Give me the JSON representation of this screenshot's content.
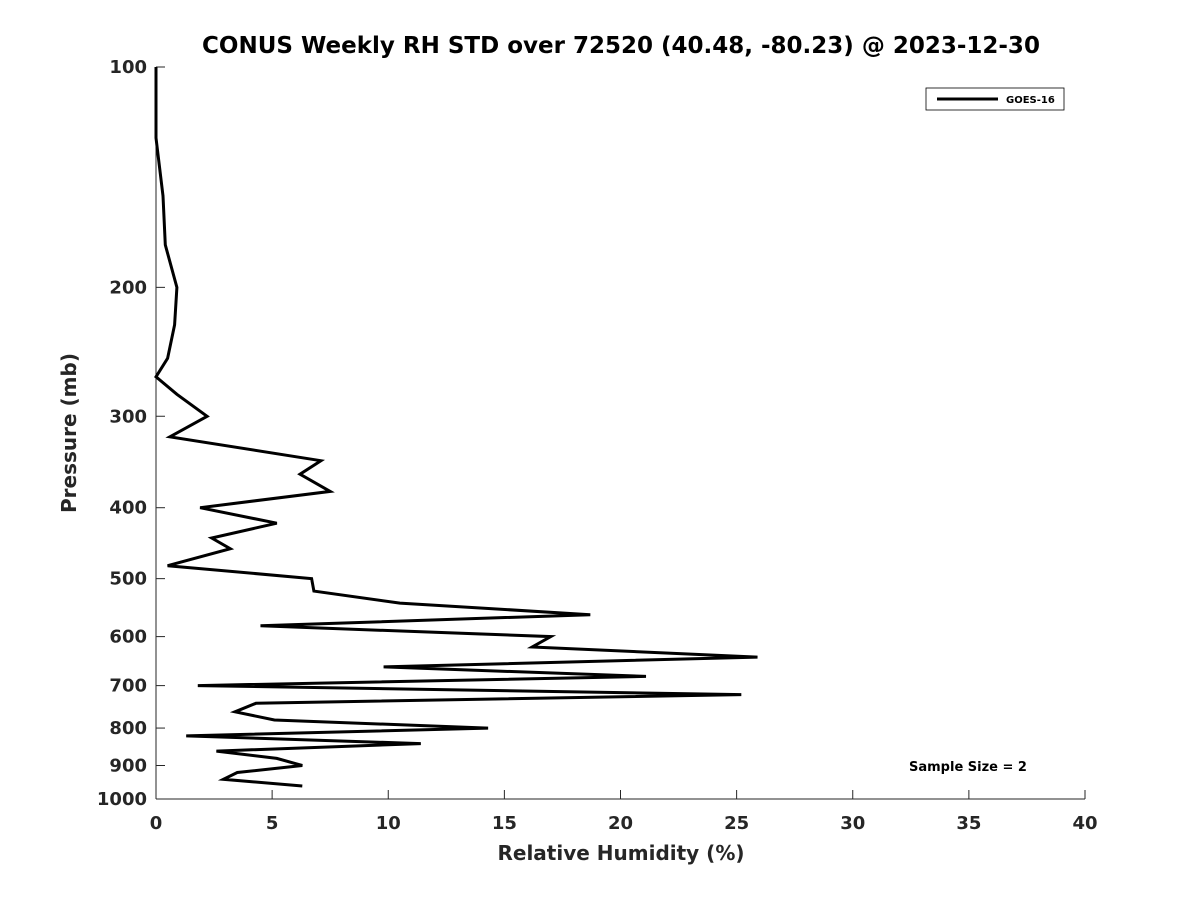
{
  "chart_data": {
    "type": "line",
    "title": "CONUS Weekly RH STD over 72520 (40.48, -80.23) @ 2023-12-30",
    "xlabel": "Relative Humidity (%)",
    "ylabel": "Pressure (mb)",
    "xlim": [
      0,
      40
    ],
    "ylim": [
      100,
      1000
    ],
    "y_scale": "log",
    "y_reversed": true,
    "x_ticks": [
      0,
      5,
      10,
      15,
      20,
      25,
      30,
      35,
      40
    ],
    "x_tick_labels": [
      "0",
      "5",
      "10",
      "15",
      "20",
      "25",
      "30",
      "35",
      "40"
    ],
    "y_ticks": [
      100,
      200,
      300,
      400,
      500,
      600,
      700,
      800,
      900,
      1000
    ],
    "y_tick_labels": [
      "100",
      "200",
      "300",
      "400",
      "500",
      "600",
      "700",
      "800",
      "900",
      "1000"
    ],
    "grid": false,
    "legend_position": "top-right",
    "series": [
      {
        "name": "GOES-16",
        "color": "#000000",
        "rh": [
          0.0,
          0.0,
          0.3,
          0.4,
          0.9,
          0.8,
          0.5,
          0.0,
          0.9,
          2.2,
          0.6,
          7.1,
          6.2,
          7.5,
          1.9,
          5.2,
          2.4,
          3.2,
          0.5,
          6.7,
          6.8,
          10.5,
          18.7,
          4.5,
          17.0,
          16.2,
          25.9,
          9.8,
          21.1,
          1.8,
          25.2,
          4.3,
          3.4,
          5.1,
          14.3,
          1.3,
          11.4,
          2.6,
          5.2,
          6.3,
          3.5,
          2.9,
          6.3
        ],
        "pressure": [
          100,
          125,
          150,
          175,
          200,
          225,
          250,
          265,
          280,
          300,
          320,
          345,
          360,
          380,
          400,
          420,
          440,
          455,
          480,
          500,
          520,
          540,
          560,
          580,
          600,
          620,
          640,
          660,
          680,
          700,
          720,
          740,
          760,
          780,
          800,
          820,
          840,
          860,
          880,
          900,
          920,
          940,
          960
        ]
      }
    ],
    "annotations": [
      {
        "text": "Sample Size = 2",
        "position": "bottom-right"
      }
    ]
  }
}
